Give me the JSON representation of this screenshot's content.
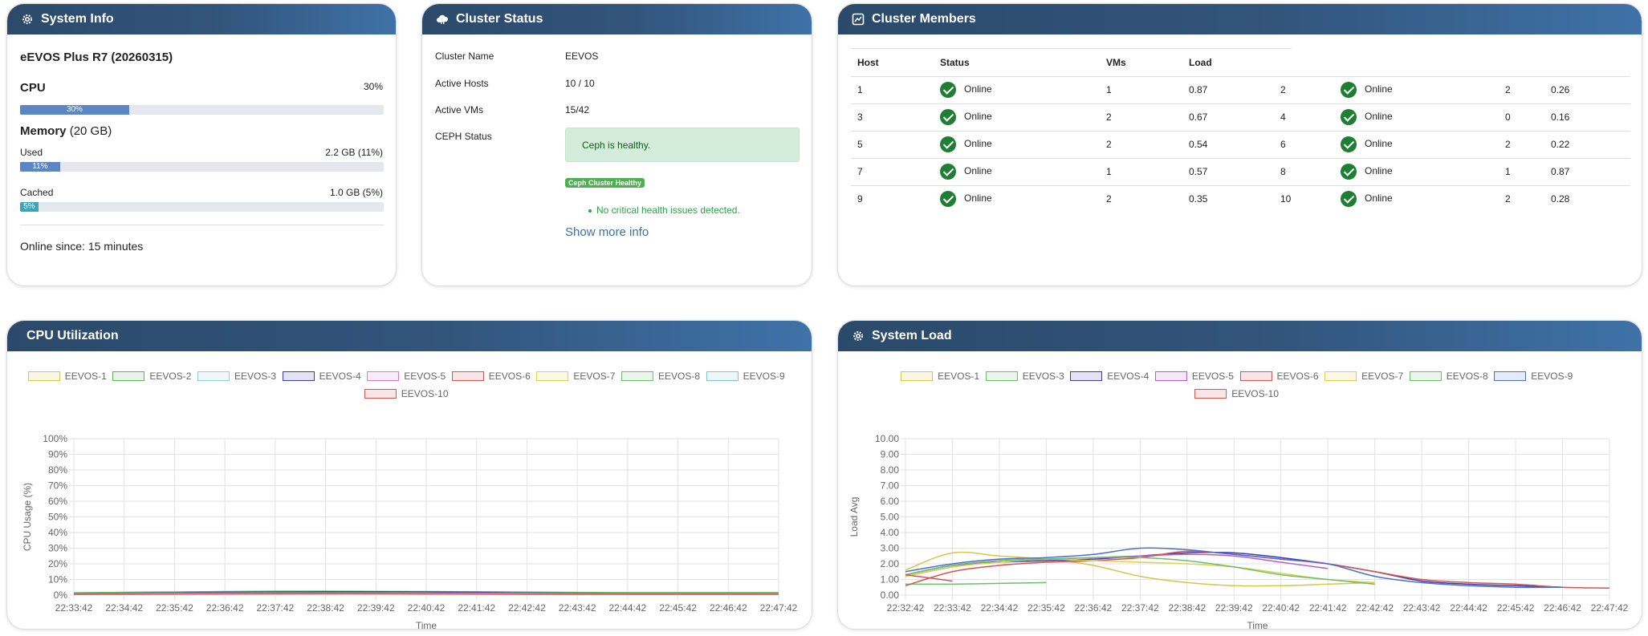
{
  "system_info": {
    "title": "System Info",
    "icon": "gear-icon",
    "product": "eEVOS Plus R7 (20260315)",
    "cpu_label": "CPU",
    "cpu_value": "30%",
    "cpu_bar_label": "30%",
    "cpu_percent": 30,
    "memory_label": "Memory",
    "memory_total": "(20 GB)",
    "used_label": "Used",
    "used_value": "2.2 GB (11%)",
    "used_bar_label": "11%",
    "used_percent": 11,
    "cached_label": "Cached",
    "cached_value": "1.0 GB (5%)",
    "cached_bar_label": "5%",
    "cached_percent": 5,
    "online_since": "Online since: 15 minutes"
  },
  "cluster_status": {
    "title": "Cluster Status",
    "icon": "cloud-icon",
    "rows": [
      {
        "label": "Cluster Name",
        "value": "EEVOS"
      },
      {
        "label": "Active Hosts",
        "value": "10 / 10"
      },
      {
        "label": "Active VMs",
        "value": "15/42"
      },
      {
        "label": "CEPH Status",
        "value": ""
      }
    ],
    "ceph_alert": "Ceph is healthy.",
    "ceph_badge": "Ceph Cluster Healthy",
    "health_note": "No critical health issues detected.",
    "show_more": "Show more info"
  },
  "cluster_members": {
    "title": "Cluster Members",
    "icon": "monitor-icon",
    "headers": [
      "Host",
      "Status",
      "VMs",
      "Load"
    ],
    "rows": [
      {
        "a_host": "1",
        "a_status": "Online",
        "a_vms": "1",
        "a_load": "0.87",
        "b_host": "2",
        "b_status": "Online",
        "b_vms": "2",
        "b_load": "0.26"
      },
      {
        "a_host": "3",
        "a_status": "Online",
        "a_vms": "2",
        "a_load": "0.67",
        "b_host": "4",
        "b_status": "Online",
        "b_vms": "0",
        "b_load": "0.16"
      },
      {
        "a_host": "5",
        "a_status": "Online",
        "a_vms": "2",
        "a_load": "0.54",
        "b_host": "6",
        "b_status": "Online",
        "b_vms": "2",
        "b_load": "0.22"
      },
      {
        "a_host": "7",
        "a_status": "Online",
        "a_vms": "1",
        "a_load": "0.57",
        "b_host": "8",
        "b_status": "Online",
        "b_vms": "1",
        "b_load": "0.87"
      },
      {
        "a_host": "9",
        "a_status": "Online",
        "a_vms": "2",
        "a_load": "0.35",
        "b_host": "10",
        "b_status": "Online",
        "b_vms": "2",
        "b_load": "0.28"
      }
    ]
  },
  "colors": {
    "header_dark": "#2b4a6b",
    "header_light": "#3f72a8",
    "progress_fill": "#5b86c4",
    "cached_fill": "#3aa6b9",
    "online_green": "#1e7e34",
    "ceph_alert_bg": "#d4edda",
    "ceph_badge_bg": "#4caf50",
    "link_blue": "#3a6fb0"
  },
  "chart_data": [
    {
      "type": "line",
      "title": "CPU Utilization",
      "xlabel": "Time",
      "ylabel": "CPU Usage (%)",
      "x": [
        "22:33:42",
        "22:34:42",
        "22:35:42",
        "22:36:42",
        "22:37:42",
        "22:38:42",
        "22:39:42",
        "22:40:42",
        "22:41:42",
        "22:42:42",
        "22:43:42",
        "22:44:42",
        "22:45:42",
        "22:46:42",
        "22:47:42"
      ],
      "y_ticks": [
        "0%",
        "10%",
        "20%",
        "30%",
        "40%",
        "50%",
        "60%",
        "70%",
        "80%",
        "90%",
        "100%"
      ],
      "ylim": [
        0,
        100
      ],
      "grid": true,
      "legend": "top",
      "series": [
        {
          "name": "EEVOS-1",
          "color": "#d4c84a",
          "values": [
            0.5,
            0.6,
            0.7,
            0.8,
            0.8,
            0.9,
            0.9,
            0.8,
            0.8,
            0.7,
            0.6,
            0.6,
            0.6,
            0.6,
            0.6
          ]
        },
        {
          "name": "EEVOS-2",
          "color": "#5cb85c",
          "values": [
            1.5,
            1.8,
            2.0,
            2.3,
            2.5,
            2.5,
            2.4,
            2.3,
            2.2,
            1.9,
            1.7,
            1.6,
            1.6,
            1.6,
            1.6
          ]
        },
        {
          "name": "EEVOS-3",
          "color": "#8fd0e0",
          "values": [
            0.8,
            0.9,
            1.0,
            1.1,
            1.2,
            1.2,
            1.2,
            1.1,
            1.0,
            1.0,
            0.9,
            0.9,
            0.9,
            0.9,
            0.9
          ]
        },
        {
          "name": "EEVOS-4",
          "color": "#3b3bb0",
          "values": [
            1.0,
            1.2,
            1.5,
            1.8,
            2.0,
            2.1,
            2.1,
            2.0,
            1.7,
            1.4,
            1.2,
            1.1,
            1.1,
            1.1,
            1.1
          ]
        },
        {
          "name": "EEVOS-5",
          "color": "#d67ad6",
          "values": [
            0.6,
            0.7,
            0.8,
            0.9,
            1.0,
            1.0,
            1.0,
            0.9,
            0.8,
            0.8,
            0.7,
            0.7,
            0.7,
            0.7,
            0.7
          ]
        },
        {
          "name": "EEVOS-6",
          "color": "#d9534f",
          "values": [
            0.7,
            0.8,
            0.9,
            1.0,
            1.1,
            1.1,
            1.1,
            1.0,
            0.9,
            0.8,
            0.8,
            0.8,
            0.8,
            0.8,
            0.8
          ]
        },
        {
          "name": "EEVOS-7",
          "color": "#e0d050",
          "values": [
            0.4,
            0.5,
            0.6,
            0.7,
            0.7,
            0.8,
            0.8,
            0.7,
            0.7,
            0.6,
            0.5,
            0.5,
            0.5,
            0.5,
            0.5
          ]
        },
        {
          "name": "EEVOS-8",
          "color": "#6cc06c",
          "values": [
            0.9,
            1.0,
            1.2,
            1.3,
            1.4,
            1.4,
            1.4,
            1.3,
            1.2,
            1.1,
            1.0,
            1.0,
            1.0,
            1.0,
            1.0
          ]
        },
        {
          "name": "EEVOS-9",
          "color": "#7fc4d4",
          "values": [
            0.8,
            0.9,
            1.0,
            1.1,
            1.2,
            1.2,
            1.2,
            1.1,
            1.0,
            0.9,
            0.9,
            0.9,
            0.9,
            0.9,
            0.9
          ]
        },
        {
          "name": "EEVOS-10",
          "color": "#d9534f",
          "values": [
            0.5,
            0.6,
            0.7,
            0.8,
            0.9,
            0.9,
            0.9,
            0.8,
            0.7,
            0.6,
            0.6,
            0.6,
            0.6,
            0.6,
            0.6
          ]
        }
      ]
    },
    {
      "type": "line",
      "title": "System Load",
      "xlabel": "Time",
      "ylabel": "Load Avg",
      "x": [
        "22:32:42",
        "22:33:42",
        "22:34:42",
        "22:35:42",
        "22:36:42",
        "22:37:42",
        "22:38:42",
        "22:39:42",
        "22:40:42",
        "22:41:42",
        "22:42:42",
        "22:43:42",
        "22:44:42",
        "22:45:42",
        "22:46:42",
        "22:47:42"
      ],
      "y_ticks": [
        "0.00",
        "1.00",
        "2.00",
        "3.00",
        "4.00",
        "5.00",
        "6.00",
        "7.00",
        "8.00",
        "9.00",
        "10.00"
      ],
      "ylim": [
        0,
        10
      ],
      "grid": true,
      "legend": "top",
      "series": [
        {
          "name": "EEVOS-1",
          "color": "#d4c84a",
          "values": [
            1.6,
            2.7,
            2.5,
            2.3,
            1.9,
            1.2,
            0.8,
            0.6,
            0.6,
            0.7,
            0.8,
            null,
            null,
            null,
            null,
            null
          ]
        },
        {
          "name": "EEVOS-3",
          "color": "#6cc06c",
          "values": [
            0.7,
            0.7,
            0.75,
            0.8,
            null,
            null,
            null,
            null,
            null,
            null,
            null,
            null,
            null,
            null,
            null,
            null
          ]
        },
        {
          "name": "EEVOS-4",
          "color": "#3b3bb0",
          "values": [
            1.3,
            1.9,
            2.1,
            2.2,
            2.3,
            2.5,
            2.7,
            2.7,
            2.4,
            2.0,
            1.5,
            0.9,
            0.7,
            0.6,
            0.5,
            null
          ]
        },
        {
          "name": "EEVOS-5",
          "color": "#b85cc8",
          "values": [
            1.2,
            1.8,
            2.2,
            2.3,
            2.4,
            2.5,
            2.6,
            2.5,
            2.1,
            1.7,
            null,
            null,
            null,
            null,
            null,
            null
          ]
        },
        {
          "name": "EEVOS-6",
          "color": "#d9534f",
          "values": [
            0.6,
            1.5,
            1.9,
            2.1,
            2.2,
            2.4,
            2.8,
            2.6,
            2.3,
            2.0,
            1.5,
            1.0,
            0.8,
            0.7,
            0.5,
            0.45
          ]
        },
        {
          "name": "EEVOS-7",
          "color": "#e0d050",
          "values": [
            1.2,
            1.8,
            2.1,
            2.3,
            2.2,
            2.1,
            2.0,
            1.8,
            1.4,
            1.0,
            0.8,
            null,
            null,
            null,
            null,
            null
          ]
        },
        {
          "name": "EEVOS-8",
          "color": "#6cc06c",
          "values": [
            1.3,
            1.9,
            2.2,
            2.3,
            2.4,
            2.4,
            2.2,
            1.8,
            1.3,
            1.0,
            0.7,
            null,
            null,
            null,
            null,
            null
          ]
        },
        {
          "name": "EEVOS-9",
          "color": "#4a6fd0",
          "values": [
            1.5,
            2.0,
            2.3,
            2.4,
            2.6,
            3.0,
            2.9,
            2.6,
            2.3,
            2.0,
            1.2,
            0.8,
            0.6,
            0.5,
            0.5,
            null
          ]
        },
        {
          "name": "EEVOS-10",
          "color": "#d9534f",
          "values": [
            1.3,
            0.9,
            null,
            null,
            null,
            null,
            null,
            null,
            null,
            null,
            null,
            null,
            null,
            null,
            null,
            null
          ]
        }
      ]
    }
  ]
}
